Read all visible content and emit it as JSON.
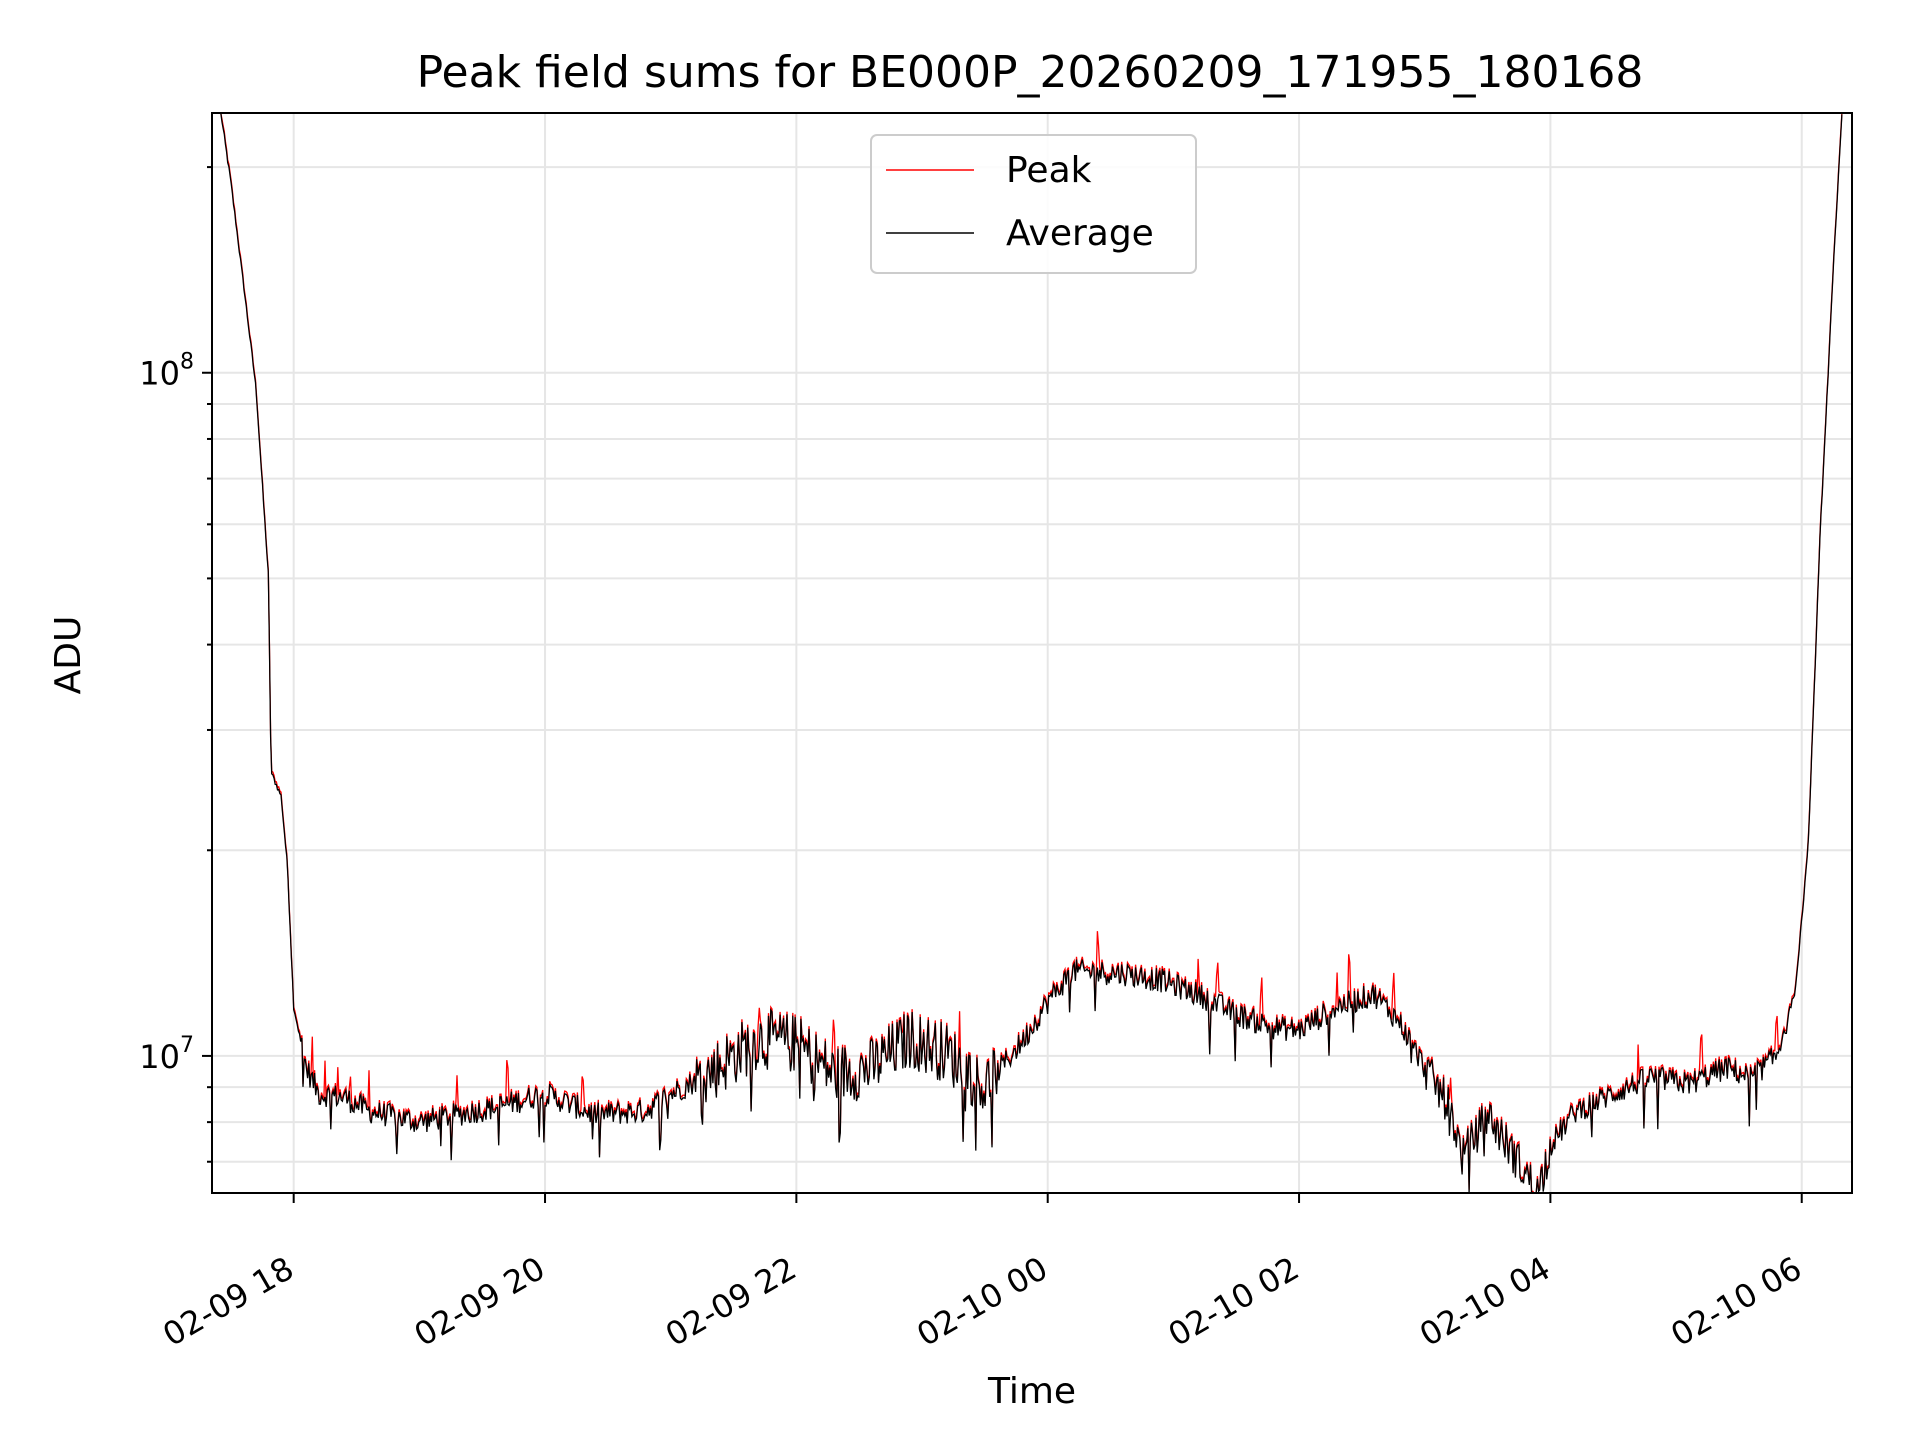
{
  "chart_data": {
    "type": "line",
    "title": "Peak field sums for BE000P_20260209_171955_180168",
    "xlabel": "Time",
    "ylabel": "ADU",
    "yscale": "log",
    "ylim": [
      6300000,
      240000000
    ],
    "xlim_hours": [
      17.35,
      30.4
    ],
    "grid": true,
    "legend_location": "upper center",
    "x_ticks": [
      {
        "hour": 18,
        "label": "02-09 18"
      },
      {
        "hour": 20,
        "label": "02-09 20"
      },
      {
        "hour": 22,
        "label": "02-09 22"
      },
      {
        "hour": 24,
        "label": "02-10 00"
      },
      {
        "hour": 26,
        "label": "02-10 02"
      },
      {
        "hour": 28,
        "label": "02-10 04"
      },
      {
        "hour": 30,
        "label": "02-10 06"
      }
    ],
    "y_major_ticks": [
      {
        "value": 10000000,
        "base": "10",
        "exp": "7"
      },
      {
        "value": 100000000,
        "base": "10",
        "exp": "8"
      }
    ],
    "series": [
      {
        "name": "Peak",
        "color": "#ff0000",
        "spike_hours": [
          18.15,
          18.25,
          18.35,
          18.45,
          18.6,
          19.3,
          19.7,
          20.3,
          21.7,
          22.3,
          22.85,
          23.3,
          24.4,
          25.2,
          25.35,
          25.7,
          26.3,
          26.4,
          26.75,
          27.2,
          28.7,
          29.2,
          29.8
        ],
        "spike_factor": 1.12
      },
      {
        "name": "Average",
        "color": "#000000",
        "anchors": [
          [
            17.42,
            240000000
          ],
          [
            17.5,
            190000000
          ],
          [
            17.6,
            135000000
          ],
          [
            17.7,
            95000000
          ],
          [
            17.8,
            50000000
          ],
          [
            17.82,
            26000000
          ],
          [
            17.9,
            24000000
          ],
          [
            17.95,
            19000000
          ],
          [
            18.0,
            11800000
          ],
          [
            18.1,
            9600000
          ],
          [
            18.2,
            8800000
          ],
          [
            18.4,
            8700000
          ],
          [
            18.6,
            8300000
          ],
          [
            19.0,
            8000000
          ],
          [
            19.3,
            8200000
          ],
          [
            19.6,
            8400000
          ],
          [
            20.0,
            8800000
          ],
          [
            20.4,
            8200000
          ],
          [
            20.8,
            8300000
          ],
          [
            21.0,
            8800000
          ],
          [
            21.3,
            9400000
          ],
          [
            21.5,
            10000000
          ],
          [
            21.7,
            10600000
          ],
          [
            22.0,
            10400000
          ],
          [
            22.3,
            9400000
          ],
          [
            22.6,
            9600000
          ],
          [
            22.9,
            10600000
          ],
          [
            23.2,
            10100000
          ],
          [
            23.5,
            9000000
          ],
          [
            23.8,
            10500000
          ],
          [
            24.0,
            12000000
          ],
          [
            24.2,
            13300000
          ],
          [
            24.6,
            13200000
          ],
          [
            24.9,
            12900000
          ],
          [
            25.2,
            12300000
          ],
          [
            25.5,
            11500000
          ],
          [
            25.8,
            11000000
          ],
          [
            26.0,
            10900000
          ],
          [
            26.3,
            11800000
          ],
          [
            26.6,
            12300000
          ],
          [
            26.8,
            11200000
          ],
          [
            27.0,
            9600000
          ],
          [
            27.2,
            8400000
          ],
          [
            27.3,
            7100000
          ],
          [
            27.5,
            8200000
          ],
          [
            27.7,
            7200000
          ],
          [
            27.9,
            6300000
          ],
          [
            28.0,
            7400000
          ],
          [
            28.2,
            8300000
          ],
          [
            28.5,
            8800000
          ],
          [
            28.8,
            9300000
          ],
          [
            29.1,
            9100000
          ],
          [
            29.4,
            9600000
          ],
          [
            29.6,
            9300000
          ],
          [
            29.8,
            10000000
          ],
          [
            29.95,
            12500000
          ],
          [
            30.05,
            20000000
          ],
          [
            30.15,
            60000000
          ],
          [
            30.25,
            140000000
          ],
          [
            30.32,
            240000000
          ]
        ]
      }
    ]
  }
}
